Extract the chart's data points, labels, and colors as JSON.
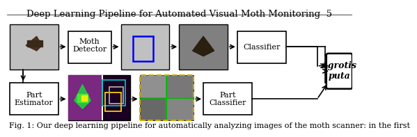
{
  "title": "Deep Learning Pipeline for Automated Visual Moth Monitoring  5",
  "caption": "Fig. 1: Our deep learning pipeline for automatically analyzing images of the moth scanner: in the first",
  "title_fontsize": 9.5,
  "caption_fontsize": 8.0,
  "bg_color": "#ffffff",
  "arrow_color": "#000000"
}
